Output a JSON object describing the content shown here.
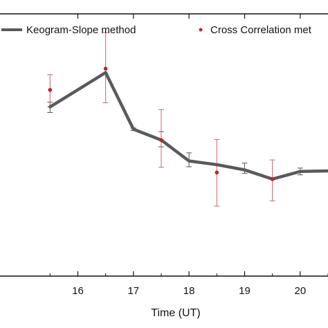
{
  "chart_data": {
    "type": "line",
    "xlabel": "Time (UT)",
    "ylabel": "",
    "xlim": [
      14.6,
      20.5
    ],
    "ylim": [
      0,
      1
    ],
    "x_ticks": [
      16,
      17,
      18,
      19,
      20
    ],
    "x_tick_labels": [
      "16",
      "17",
      "18",
      "19",
      "20"
    ],
    "grid": false,
    "legend_position": "top",
    "series": [
      {
        "name": "Keogram-Slope method",
        "style": "line",
        "color": "#5a5a5a",
        "x": [
          15.5,
          16.5,
          17.0,
          17.5,
          18.0,
          18.5,
          19.0,
          19.5,
          20.0,
          20.5
        ],
        "y": [
          0.645,
          0.776,
          0.56,
          0.519,
          0.439,
          0.425,
          0.405,
          0.37,
          0.399,
          0.401
        ],
        "err_low": [
          0.021,
          0.0,
          0.005,
          0.026,
          0.022,
          0.0,
          0.013,
          0.0,
          0.013,
          0.0
        ],
        "err_high": [
          0.018,
          0.0,
          0.005,
          0.032,
          0.031,
          0.0,
          0.026,
          0.0,
          0.013,
          0.0
        ]
      },
      {
        "name": "Cross Correlation method",
        "style": "scatter",
        "color": "#c0202a",
        "x": [
          15.5,
          16.5,
          17.5,
          18.5,
          19.5
        ],
        "y": [
          0.71,
          0.791,
          0.519,
          0.395,
          0.37
        ],
        "err_low": [
          0.064,
          0.13,
          0.104,
          0.128,
          0.083
        ],
        "err_high": [
          0.058,
          0.138,
          0.116,
          0.126,
          0.073
        ]
      }
    ]
  },
  "legend": {
    "items": [
      {
        "label": "Keogram-Slope method",
        "color": "#5a5a5a",
        "kind": "line"
      },
      {
        "label": "Cross Correlation met",
        "color": "#c0202a",
        "kind": "dot"
      }
    ]
  }
}
